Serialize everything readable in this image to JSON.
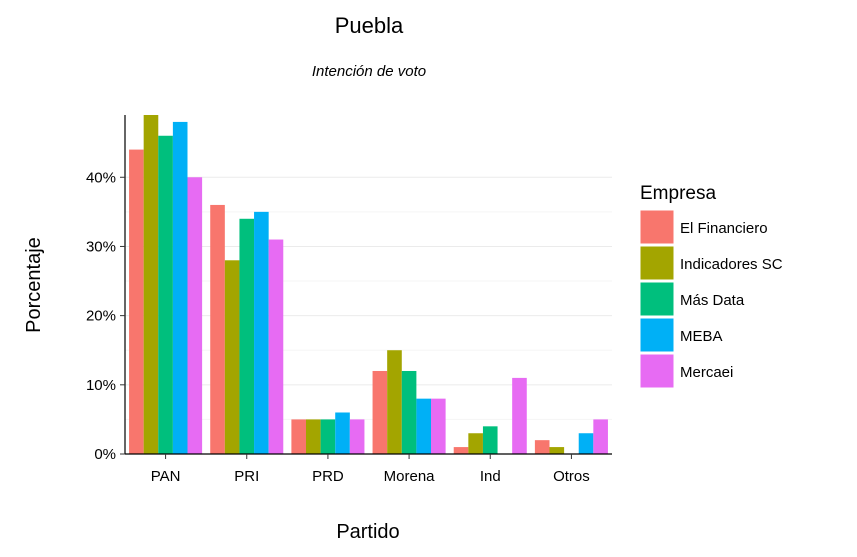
{
  "chart_data": {
    "type": "bar",
    "title": "Puebla",
    "subtitle": "Intención de voto",
    "xlabel": "Partido",
    "ylabel": "Porcentaje",
    "ylim": [
      0,
      0.49
    ],
    "yticks": [
      0,
      0.1,
      0.2,
      0.3,
      0.4
    ],
    "ytick_labels": [
      "0%",
      "10%",
      "20%",
      "30%",
      "40%"
    ],
    "grid": true,
    "legend_title": "Empresa",
    "legend_position": "right",
    "categories": [
      "PAN",
      "PRI",
      "PRD",
      "Morena",
      "Ind",
      "Otros"
    ],
    "series": [
      {
        "name": "El Financiero",
        "color": "#F8766D",
        "values": [
          0.44,
          0.36,
          0.05,
          0.12,
          0.01,
          0.02
        ]
      },
      {
        "name": "Indicadores SC",
        "color": "#A3A500",
        "values": [
          0.49,
          0.28,
          0.05,
          0.15,
          0.03,
          0.01
        ]
      },
      {
        "name": "Más Data",
        "color": "#00BF7D",
        "values": [
          0.46,
          0.34,
          0.05,
          0.12,
          0.04,
          null
        ]
      },
      {
        "name": "MEBA",
        "color": "#00B0F6",
        "values": [
          0.48,
          0.35,
          0.06,
          0.08,
          null,
          0.03
        ]
      },
      {
        "name": "Mercaei",
        "color": "#E76BF3",
        "values": [
          0.4,
          0.31,
          0.05,
          0.08,
          0.11,
          0.05
        ]
      }
    ]
  }
}
